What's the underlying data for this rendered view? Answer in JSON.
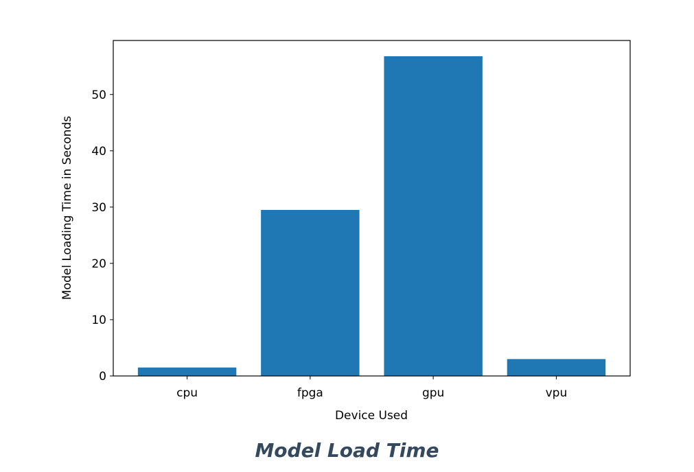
{
  "caption": "Model Load Time",
  "colors": {
    "bar": "#1f77b4",
    "caption": "#34495e",
    "axis": "#000000"
  },
  "chart_data": {
    "type": "bar",
    "categories": [
      "cpu",
      "fpga",
      "gpu",
      "vpu"
    ],
    "values": [
      1.5,
      29.5,
      56.8,
      3.0
    ],
    "title": "",
    "xlabel": "Device Used",
    "ylabel": "Model Loading Time in Seconds",
    "ylim": [
      0,
      59.6
    ],
    "yticks": [
      0,
      10,
      20,
      30,
      40,
      50
    ],
    "grid": false
  }
}
